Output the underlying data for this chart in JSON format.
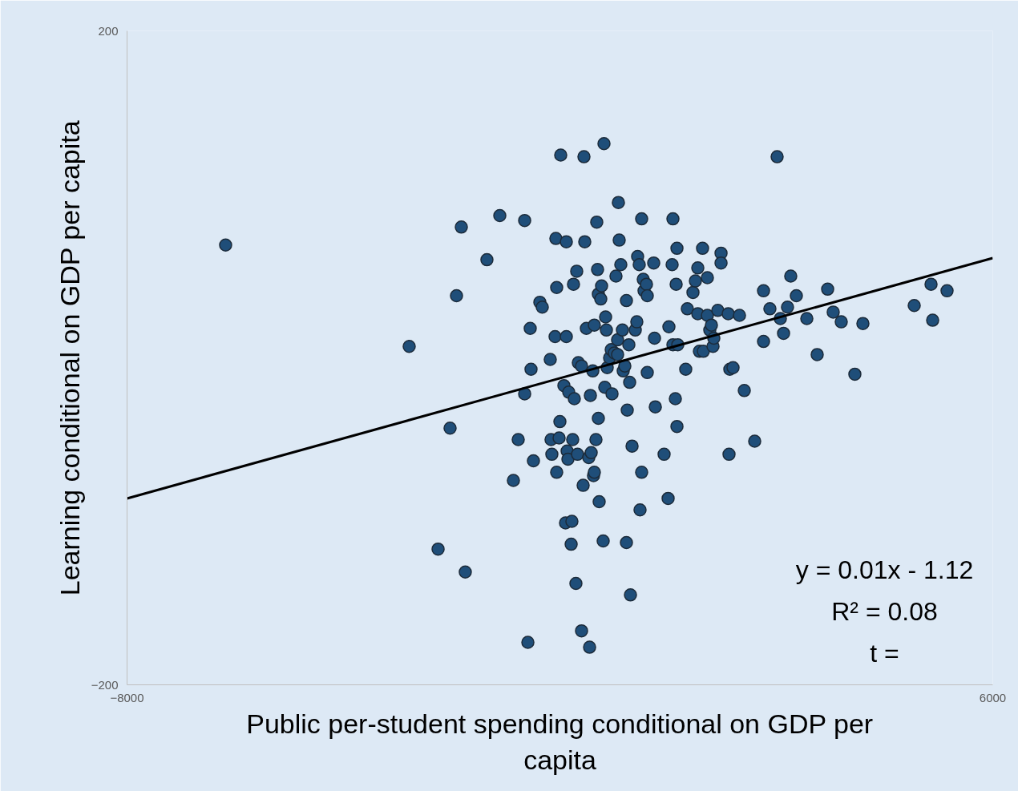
{
  "chart_data": {
    "type": "scatter",
    "xlabel": "Public per-student spending conditional on GDP per capita",
    "ylabel": "Learning conditional on GDP per capita",
    "xlim": [
      -8000,
      6000
    ],
    "ylim": [
      -200,
      200
    ],
    "xticks": [
      -8000,
      6000
    ],
    "yticks": [
      -200,
      200
    ],
    "annotations": [
      "y = 0.01x - 1.12",
      "R² = 0.08",
      "t ="
    ],
    "series": [
      {
        "color": "#1f4e79",
        "marker": "circle",
        "x": [
          -6406,
          -3437,
          -2776,
          -2970,
          -2530,
          -2672,
          -2594,
          -2180,
          -1972,
          -1570,
          -1752,
          -1674,
          -1570,
          -1518,
          -1480,
          -1467,
          -1428,
          -1324,
          -1285,
          -1156,
          -1143,
          -1130,
          -1078,
          -1065,
          -1052,
          -1052,
          -1013,
          -1000,
          -987,
          -935,
          -909,
          -896,
          -896,
          -883,
          -870,
          -857,
          -818,
          -806,
          -793,
          -780,
          -767,
          -741,
          -728,
          -715,
          -702,
          -650,
          -650,
          -624,
          -611,
          -598,
          -572,
          -533,
          -520,
          -507,
          -494,
          -468,
          -456,
          -443,
          -443,
          -417,
          -404,
          -391,
          -378,
          -378,
          -365,
          -339,
          -326,
          -300,
          -287,
          -274,
          -261,
          -248,
          -235,
          -196,
          -170,
          -157,
          -118,
          -93,
          -67,
          -67,
          -54,
          -41,
          -15,
          11,
          24,
          50,
          76,
          76,
          89,
          115,
          128,
          141,
          167,
          219,
          244,
          257,
          283,
          296,
          322,
          322,
          348,
          361,
          400,
          413,
          413,
          517,
          530,
          543,
          685,
          750,
          763,
          815,
          828,
          828,
          867,
          880,
          893,
          893,
          906,
          1035,
          1061,
          1152,
          1191,
          1230,
          1230,
          1256,
          1307,
          1320,
          1385,
          1385,
          1424,
          1450,
          1476,
          1489,
          1554,
          1606,
          1606,
          1722,
          1735,
          1748,
          1800,
          1904,
          1982,
          2150,
          2293,
          2293,
          2396,
          2513,
          2565,
          2617,
          2681,
          2733,
          2824,
          2993,
          3161,
          3330,
          3420,
          3550,
          3770,
          3900,
          4730,
          5002,
          5028,
          5261
        ],
        "values": [
          69,
          7,
          -43,
          -117,
          -131,
          38,
          80,
          60,
          87,
          84,
          -75,
          -50,
          -22,
          -174,
          18,
          -7,
          -63,
          34,
          31,
          -1,
          -50,
          -59,
          13,
          73,
          43,
          -70,
          -49,
          -39,
          124,
          -17,
          -101,
          13,
          71,
          -57,
          -62,
          -21,
          -114,
          -100,
          -50,
          45,
          -25,
          -138,
          53,
          -59,
          -3,
          -167,
          -5,
          -78,
          123,
          71,
          18,
          -61,
          -177,
          -23,
          -58,
          -8,
          -72,
          -70,
          20,
          -50,
          83,
          54,
          -37,
          39,
          -88,
          36,
          44,
          -112,
          131,
          -18,
          25,
          17,
          -6,
          0,
          5,
          -22,
          3,
          50,
          11,
          2,
          95,
          72,
          57,
          17,
          -8,
          -5,
          35,
          -113,
          -32,
          8,
          -15,
          -145,
          -54,
          17,
          22,
          62,
          57,
          -93,
          85,
          -70,
          48,
          41,
          45,
          38,
          -9,
          58,
          12,
          -30,
          -59,
          -86,
          19,
          57,
          85,
          8,
          -25,
          45,
          -42,
          67,
          8,
          -7,
          30,
          40,
          47,
          55,
          27,
          4,
          67,
          4,
          49,
          26,
          17,
          20,
          7,
          12,
          29,
          64,
          58,
          27,
          -59,
          -7,
          -6,
          26,
          -20,
          -51,
          41,
          10,
          30,
          123,
          24,
          15,
          31,
          50,
          38,
          24,
          2,
          42,
          28,
          22,
          -10,
          21,
          32,
          45,
          23,
          41
        ]
      },
      {
        "type": "line",
        "marker": "none",
        "color": "#000000",
        "x": [
          -8000,
          6000
        ],
        "values": [
          -86,
          61
        ]
      }
    ]
  }
}
